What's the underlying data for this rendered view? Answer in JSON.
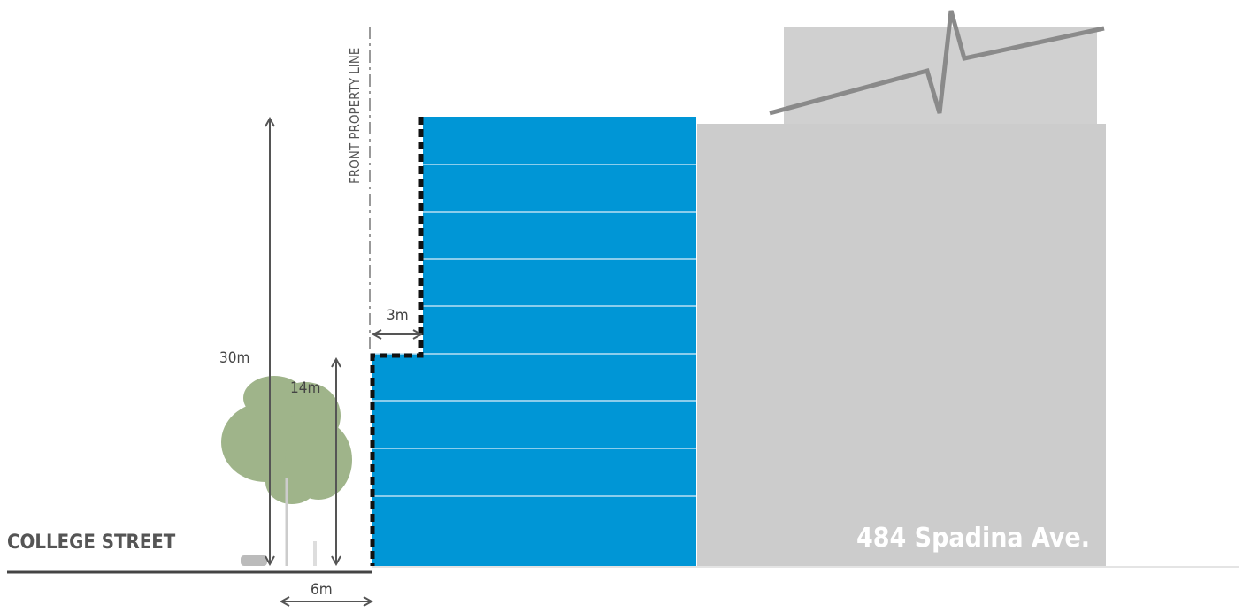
{
  "labels": {
    "property_line": "FRONT PROPERTY LINE",
    "setback": "3m",
    "height_total": "30m",
    "height_base": "14m",
    "street": "COLLEGE STREET",
    "sidewalk": "6m",
    "neighbour": "484 Spadina Ave."
  }
}
